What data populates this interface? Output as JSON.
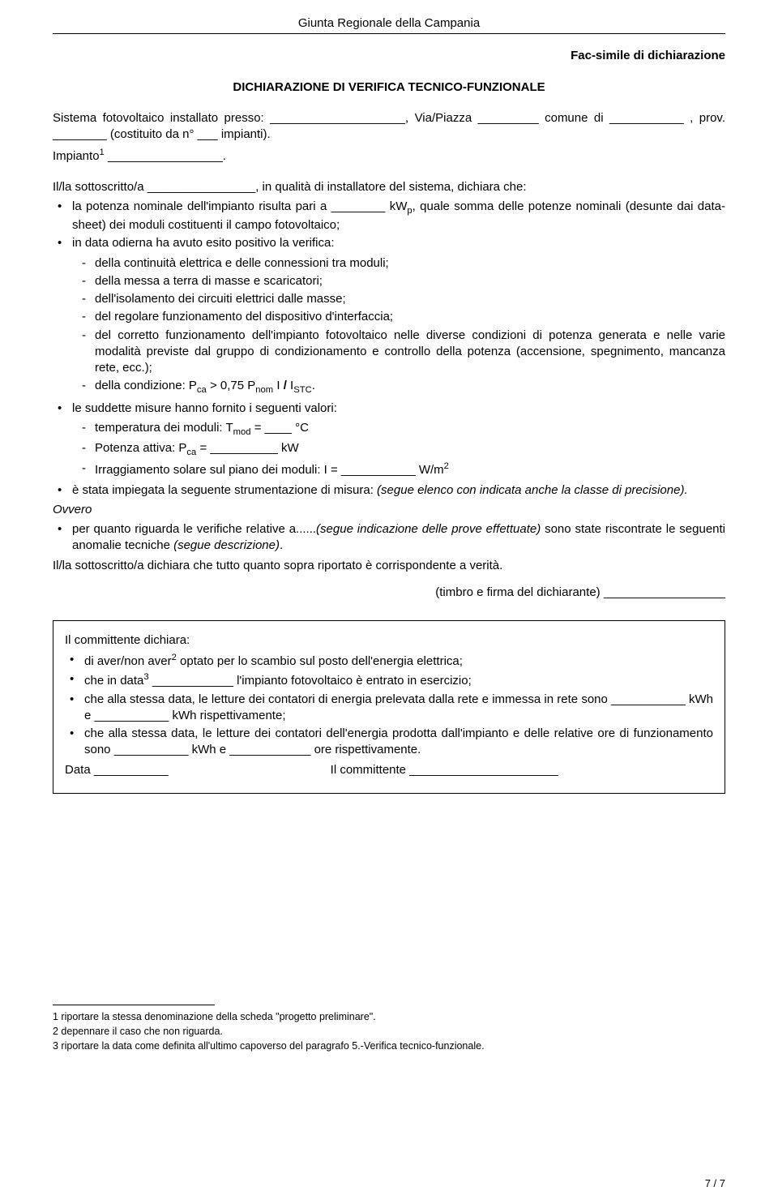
{
  "header": "Giunta Regionale della Campania",
  "facsimile": "Fac-simile di dichiarazione",
  "title": "DICHIARAZIONE DI VERIFICA TECNICO-FUNZIONALE",
  "intro1": "Sistema fotovoltaico installato presso: ____________________, Via/Piazza _________ comune di ___________ , prov. ________ (costituito da n° ___ impianti).",
  "intro2_pre": "Impianto",
  "intro2_sup": "1",
  "intro2_post": " _________________.",
  "para1": "Il/la sottoscritto/a ________________, in qualità di installatore del sistema, dichiara che:",
  "b1_pre": "la potenza nominale dell'impianto risulta pari a ________ kW",
  "b1_sub": "p",
  "b1_post": ", quale somma delle potenze nominali (desunte dai data-sheet) dei moduli costituenti il campo fotovoltaico;",
  "b2": "in data odierna ha avuto esito positivo la verifica:",
  "d1": "della continuità elettrica e delle connessioni tra moduli;",
  "d2": "della messa a terra di masse e scaricatori;",
  "d3": "dell'isolamento dei circuiti elettrici dalle masse;",
  "d4": "del regolare funzionamento del dispositivo d'interfaccia;",
  "d5": "del corretto funzionamento dell'impianto fotovoltaico nelle diverse condizioni di potenza generata e nelle varie modalità previste dal gruppo di condizionamento e controllo della potenza (accensione, spegnimento, mancanza rete, ecc.);",
  "d6_pre": "della condizione: P",
  "d6_s1": "ca",
  "d6_mid1": " > 0,75  P",
  "d6_s2": "nom",
  "d6_mid2": "    I ",
  "d6_slash": "/",
  "d6_mid3": " I",
  "d6_s3": "STC",
  "d6_post": ".",
  "b3": "le suddette misure hanno fornito i seguenti valori:",
  "d7_pre": "temperatura dei moduli: T",
  "d7_sub": "mod",
  "d7_post": " = ____ °C",
  "d8_pre": "Potenza attiva: P",
  "d8_sub": "ca",
  "d8_post": " = __________ kW",
  "d9_pre": "Irraggiamento solare sul piano dei moduli: I = ___________ W/m",
  "d9_sup": "2",
  "b4_pre": "è stata impiegata la seguente strumentazione di misura: ",
  "b4_it": "(segue elenco con indicata anche la classe di precisione).",
  "ovvero": "Ovvero",
  "b5_pre": "per quanto riguarda le verifiche relative a......",
  "b5_it1": "(segue indicazione delle prove effettuate)",
  "b5_mid": " sono state riscontrate le seguenti anomalie tecniche ",
  "b5_it2": "(segue descrizione)",
  "b5_post": ".",
  "closing": "Il/la sottoscritto/a dichiara che tutto quanto sopra riportato è corrispondente a verità.",
  "sig": "(timbro e firma del dichiarante) __________________",
  "box_h": "Il committente dichiara:",
  "box_b1_pre": "di aver/non aver",
  "box_b1_sup": "2",
  "box_b1_post": " optato per lo scambio sul posto dell'energia elettrica;",
  "box_b2_pre": "che in data",
  "box_b2_sup": "3",
  "box_b2_post": " ____________ l'impianto fotovoltaico è entrato in esercizio;",
  "box_b3": "che alla stessa data, le letture dei contatori di energia prelevata dalla rete e immessa in rete sono ___________ kWh e ___________ kWh rispettivamente;",
  "box_b4": "che alla stessa data, le letture dei contatori dell'energia prodotta dall'impianto e delle relative ore di funzionamento sono ___________ kWh e ____________ ore rispettivamente.",
  "box_date": "Data ___________                                                Il committente ______________________",
  "fn1": "1   riportare la stessa denominazione della scheda \"progetto preliminare\".",
  "fn2": "2   depennare il caso che non riguarda.",
  "fn3": "3   riportare la data come definita all'ultimo capoverso del paragrafo 5.-Verifica tecnico-funzionale.",
  "pgnum": "7 / 7"
}
